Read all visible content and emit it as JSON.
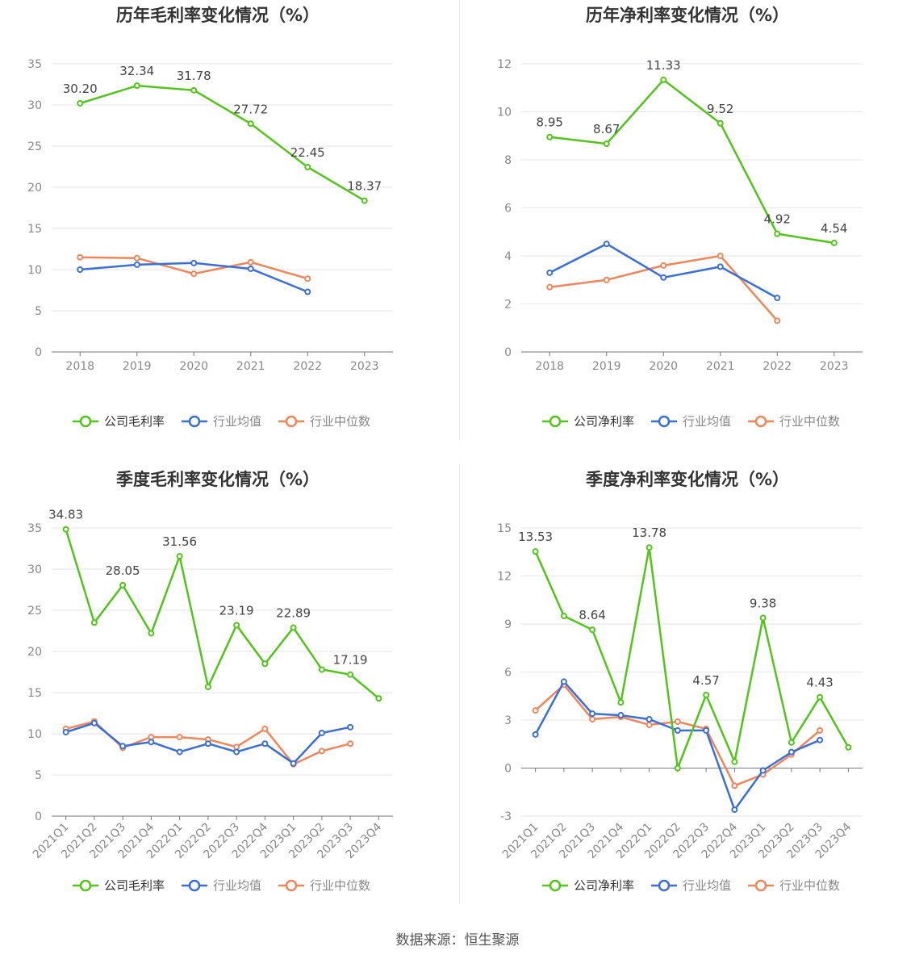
{
  "source_label": "数据来源：恒生聚源",
  "colors": {
    "company": "#52c41a",
    "avg": "#3a6fd8",
    "median": "#f0855a"
  },
  "chart_data": [
    {
      "id": "annual-gross",
      "type": "line",
      "title": "历年毛利率变化情况（%）",
      "categories": [
        "2018",
        "2019",
        "2020",
        "2021",
        "2022",
        "2023"
      ],
      "ylim": [
        0,
        35
      ],
      "yticks": [
        0,
        5,
        10,
        15,
        20,
        25,
        30,
        35
      ],
      "series": [
        {
          "name": "公司毛利率",
          "key": "company",
          "values": [
            30.2,
            32.34,
            31.78,
            27.72,
            22.45,
            18.37
          ],
          "labels": [
            "30.20",
            "32.34",
            "31.78",
            "27.72",
            "22.45",
            "18.37"
          ]
        },
        {
          "name": "行业均值",
          "key": "avg",
          "values": [
            10.0,
            10.6,
            10.8,
            10.1,
            7.3,
            null
          ]
        },
        {
          "name": "行业中位数",
          "key": "median",
          "values": [
            11.5,
            11.4,
            9.5,
            10.9,
            8.9,
            null
          ]
        }
      ]
    },
    {
      "id": "annual-net",
      "type": "line",
      "title": "历年净利率变化情况（%）",
      "categories": [
        "2018",
        "2019",
        "2020",
        "2021",
        "2022",
        "2023"
      ],
      "ylim": [
        0,
        12
      ],
      "yticks": [
        0,
        2,
        4,
        6,
        8,
        10,
        12
      ],
      "series": [
        {
          "name": "公司净利率",
          "key": "company",
          "values": [
            8.95,
            8.67,
            11.33,
            9.52,
            4.92,
            4.54
          ],
          "labels": [
            "8.95",
            "8.67",
            "11.33",
            "9.52",
            "4.92",
            "4.54"
          ]
        },
        {
          "name": "行业均值",
          "key": "avg",
          "values": [
            3.3,
            4.5,
            3.1,
            3.55,
            2.25,
            null
          ]
        },
        {
          "name": "行业中位数",
          "key": "median",
          "values": [
            2.7,
            3.0,
            3.6,
            4.0,
            1.3,
            null
          ]
        }
      ]
    },
    {
      "id": "quarterly-gross",
      "type": "line",
      "title": "季度毛利率变化情况（%）",
      "categories": [
        "2021Q1",
        "2021Q2",
        "2021Q3",
        "2021Q4",
        "2022Q1",
        "2022Q2",
        "2022Q3",
        "2022Q4",
        "2023Q1",
        "2023Q2",
        "2023Q3",
        "2023Q4"
      ],
      "ylim": [
        0,
        35
      ],
      "yticks": [
        0,
        5,
        10,
        15,
        20,
        25,
        30,
        35
      ],
      "rotate_labels": true,
      "series": [
        {
          "name": "公司毛利率",
          "key": "company",
          "values": [
            34.83,
            23.5,
            28.05,
            22.2,
            31.56,
            15.7,
            23.19,
            18.5,
            22.89,
            17.8,
            17.19,
            14.3
          ],
          "labels": [
            "34.83",
            "",
            "28.05",
            "",
            "31.56",
            "",
            "23.19",
            "",
            "22.89",
            "",
            "17.19",
            ""
          ]
        },
        {
          "name": "行业均值",
          "key": "avg",
          "values": [
            10.2,
            11.3,
            8.5,
            9.0,
            7.8,
            8.8,
            7.8,
            8.8,
            6.4,
            10.1,
            10.8,
            null
          ]
        },
        {
          "name": "行业中位数",
          "key": "median",
          "values": [
            10.6,
            11.5,
            8.3,
            9.6,
            9.6,
            9.3,
            8.4,
            10.6,
            6.3,
            7.9,
            8.8,
            null
          ]
        }
      ]
    },
    {
      "id": "quarterly-net",
      "type": "line",
      "title": "季度净利率变化情况（%）",
      "categories": [
        "2021Q1",
        "2021Q2",
        "2021Q3",
        "2021Q4",
        "2022Q1",
        "2022Q2",
        "2022Q3",
        "2022Q4",
        "2023Q1",
        "2023Q2",
        "2023Q3",
        "2023Q4"
      ],
      "ylim": [
        -3,
        15
      ],
      "yticks": [
        -3,
        0,
        3,
        6,
        9,
        12,
        15
      ],
      "rotate_labels": true,
      "series": [
        {
          "name": "公司净利率",
          "key": "company",
          "values": [
            13.53,
            9.5,
            8.64,
            4.1,
            13.78,
            0.0,
            4.57,
            0.4,
            9.38,
            1.6,
            4.43,
            1.3
          ],
          "labels": [
            "13.53",
            "",
            "8.64",
            "",
            "13.78",
            "",
            "4.57",
            "",
            "9.38",
            "",
            "4.43",
            ""
          ]
        },
        {
          "name": "行业均值",
          "key": "avg",
          "values": [
            2.1,
            5.4,
            3.4,
            3.3,
            3.05,
            2.35,
            2.35,
            -2.6,
            -0.15,
            1.0,
            1.75,
            null
          ]
        },
        {
          "name": "行业中位数",
          "key": "median",
          "values": [
            3.6,
            5.2,
            3.05,
            3.2,
            2.7,
            2.9,
            2.45,
            -1.1,
            -0.4,
            0.85,
            2.35,
            null
          ]
        }
      ]
    }
  ]
}
